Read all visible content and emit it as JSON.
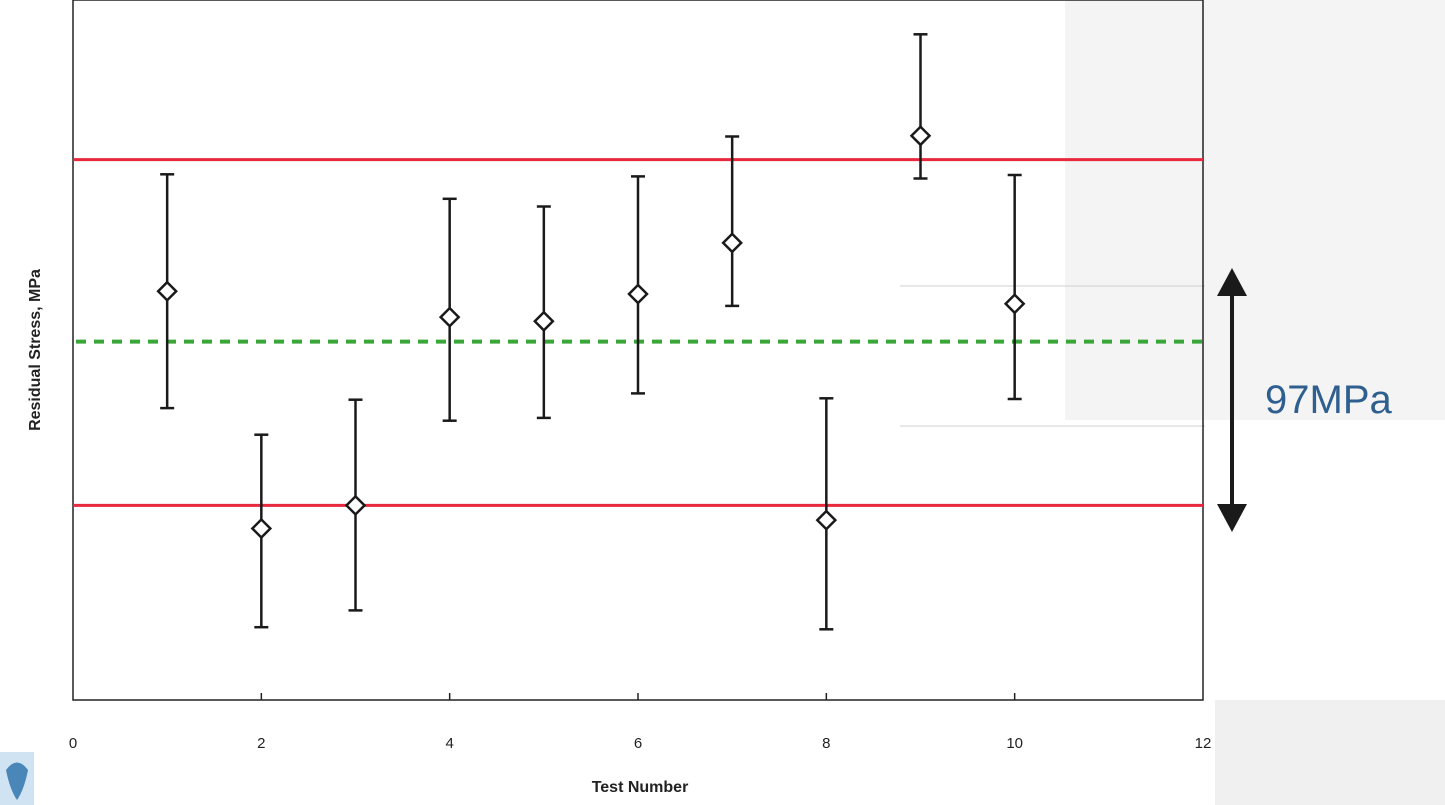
{
  "chart_data": {
    "type": "scatter",
    "title": "",
    "xlabel": "Test Number",
    "ylabel": "Residual Stress, MPa",
    "xlim": [
      0,
      12
    ],
    "x_ticks": [
      "0",
      "2",
      "4",
      "6",
      "8",
      "10",
      "12"
    ],
    "y_tick_labels_shown": false,
    "grid": false,
    "marker": "open-diamond",
    "points": [
      {
        "x": 1,
        "y": 0.584,
        "err_low": 0.417,
        "err_high": 0.751
      },
      {
        "x": 2,
        "y": 0.245,
        "err_low": 0.104,
        "err_high": 0.379
      },
      {
        "x": 3,
        "y": 0.278,
        "err_low": 0.128,
        "err_high": 0.429
      },
      {
        "x": 4,
        "y": 0.547,
        "err_low": 0.399,
        "err_high": 0.716
      },
      {
        "x": 5,
        "y": 0.541,
        "err_low": 0.403,
        "err_high": 0.705
      },
      {
        "x": 6,
        "y": 0.58,
        "err_low": 0.438,
        "err_high": 0.748
      },
      {
        "x": 7,
        "y": 0.653,
        "err_low": 0.563,
        "err_high": 0.805
      },
      {
        "x": 8,
        "y": 0.257,
        "err_low": 0.101,
        "err_high": 0.431
      },
      {
        "x": 9,
        "y": 0.806,
        "err_low": 0.745,
        "err_high": 0.951
      },
      {
        "x": 10,
        "y": 0.566,
        "err_low": 0.43,
        "err_high": 0.75
      }
    ],
    "reference_lines": [
      {
        "kind": "upper-limit",
        "y": 0.772,
        "color": "#e8283c"
      },
      {
        "kind": "lower-limit",
        "y": 0.278,
        "color": "#e8283c"
      },
      {
        "kind": "mean",
        "y": 0.512,
        "color": "#3aa63a",
        "dashed": true
      }
    ],
    "annotation": {
      "label": "97MPa",
      "color": "#2f5f8f"
    }
  },
  "colors": {
    "marker": "#1a1a1a",
    "limit": "#e8283c",
    "mean": "#3aa63a",
    "annotation": "#2f5f8f"
  },
  "icons": {
    "logo": "corner-logo-icon"
  }
}
